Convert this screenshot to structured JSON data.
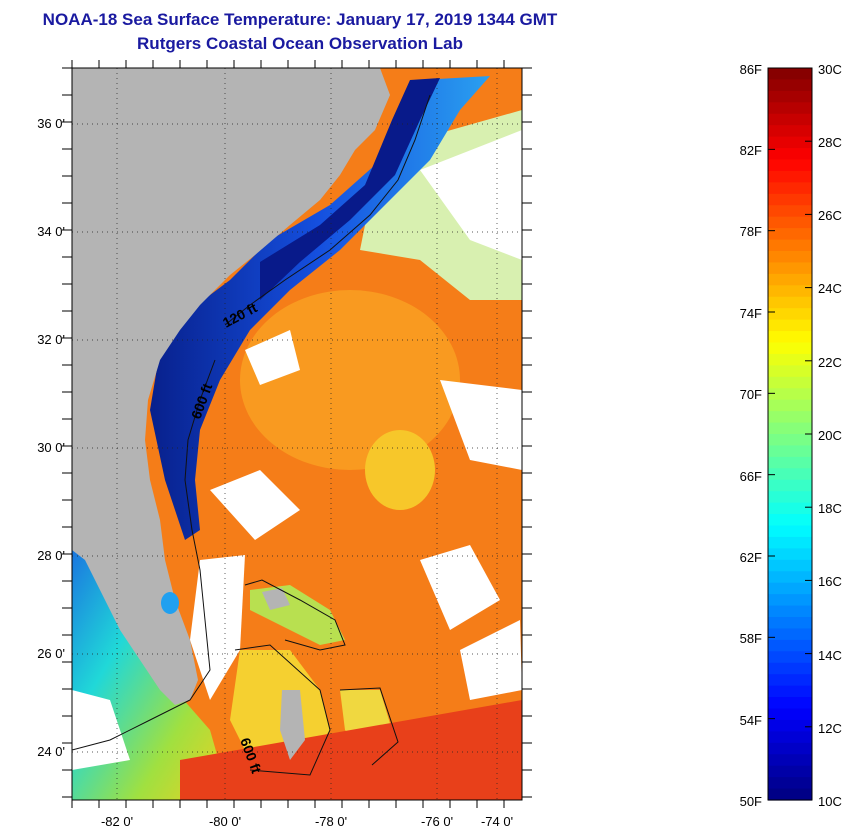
{
  "title": {
    "line1": "NOAA-18 Sea Surface Temperature:  January 17, 2019 1344 GMT",
    "line2": "Rutgers Coastal Ocean Observation Lab"
  },
  "map": {
    "lat_labels": [
      "36 0'",
      "34 0'",
      "32 0'",
      "30 0'",
      "28 0'",
      "26 0'",
      "24 0'"
    ],
    "lon_labels": [
      "-82 0'",
      "-80 0'",
      "-78 0'",
      "-76 0'",
      "-74 0'"
    ],
    "contours": [
      "120 ft",
      "600 ft",
      "600 ft"
    ],
    "colors": {
      "land": "#b4b4b4",
      "cloud": "#ffffff",
      "cold_shelf": "#0a1a9a",
      "warm_offshore": "#ff8c1a"
    }
  },
  "colorbar": {
    "fahrenheit": [
      "86F",
      "82F",
      "78F",
      "74F",
      "70F",
      "66F",
      "62F",
      "58F",
      "54F",
      "50F"
    ],
    "celsius": [
      "30C",
      "28C",
      "26C",
      "24C",
      "22C",
      "20C",
      "18C",
      "16C",
      "14C",
      "12C",
      "10C"
    ]
  }
}
